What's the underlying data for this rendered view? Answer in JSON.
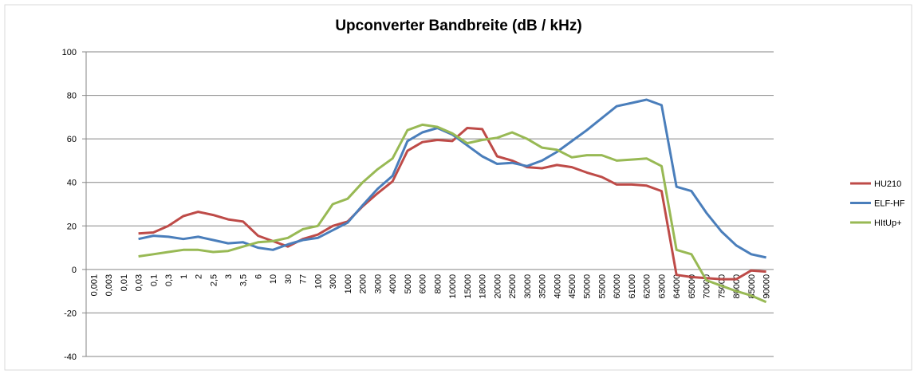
{
  "chart_data": {
    "type": "line",
    "title": "Upconverter Bandbreite (dB / kHz)",
    "categories": [
      "0,001",
      "0,003",
      "0,01",
      "0,03",
      "0,1",
      "0,3",
      "1",
      "2",
      "2,5",
      "3",
      "3,5",
      "6",
      "10",
      "30",
      "77",
      "100",
      "300",
      "1000",
      "2000",
      "3000",
      "4000",
      "5000",
      "6000",
      "8000",
      "10000",
      "15000",
      "18000",
      "20000",
      "25000",
      "30000",
      "35000",
      "40000",
      "45000",
      "50000",
      "55000",
      "60000",
      "61000",
      "62000",
      "63000",
      "64000",
      "65000",
      "70000",
      "75000",
      "80000",
      "85000",
      "90000"
    ],
    "series": [
      {
        "name": "HU210",
        "color": "#be4b48",
        "values": [
          null,
          null,
          null,
          16.5,
          17,
          20,
          24.5,
          26.5,
          25,
          23,
          22,
          15.5,
          13,
          10.5,
          14,
          16,
          20,
          22,
          29,
          35,
          40.5,
          54.5,
          58.5,
          59.5,
          59,
          65,
          64.5,
          52,
          50,
          47,
          46.5,
          48,
          47,
          44.5,
          42.5,
          39,
          39,
          38.5,
          36,
          -2.5,
          -3.5,
          -4,
          -4.5,
          -4.5,
          -0.5,
          -1
        ]
      },
      {
        "name": "ELF-HF",
        "color": "#4a7ebb",
        "values": [
          null,
          null,
          null,
          14,
          15.5,
          15,
          14,
          15,
          13.5,
          12,
          12.5,
          10,
          9,
          11.5,
          13.5,
          14.5,
          18,
          21.5,
          29.5,
          37,
          43,
          59,
          63,
          65,
          62,
          57,
          52,
          48.5,
          49,
          47.5,
          50,
          54,
          59,
          64,
          69.5,
          75,
          76.5,
          78,
          75.5,
          38,
          36,
          26,
          17.5,
          11,
          7,
          5.5
        ]
      },
      {
        "name": "HItUp+",
        "color": "#98b954",
        "values": [
          null,
          null,
          null,
          6,
          7,
          8,
          9,
          9,
          8,
          8.5,
          10.5,
          12.5,
          13,
          14.5,
          18.5,
          20,
          30,
          32.5,
          40,
          46,
          51,
          64,
          66.5,
          65.5,
          62.5,
          58,
          59.5,
          60.5,
          63,
          60,
          56,
          55,
          51.5,
          52.5,
          52.5,
          50,
          50.5,
          51,
          47.5,
          9,
          7,
          -5,
          -7.5,
          -10,
          -12,
          -15
        ]
      }
    ],
    "ylim": [
      -40,
      100
    ],
    "yticks": [
      -40,
      -20,
      0,
      20,
      40,
      60,
      80,
      100
    ],
    "grid": true,
    "legend": "right"
  }
}
